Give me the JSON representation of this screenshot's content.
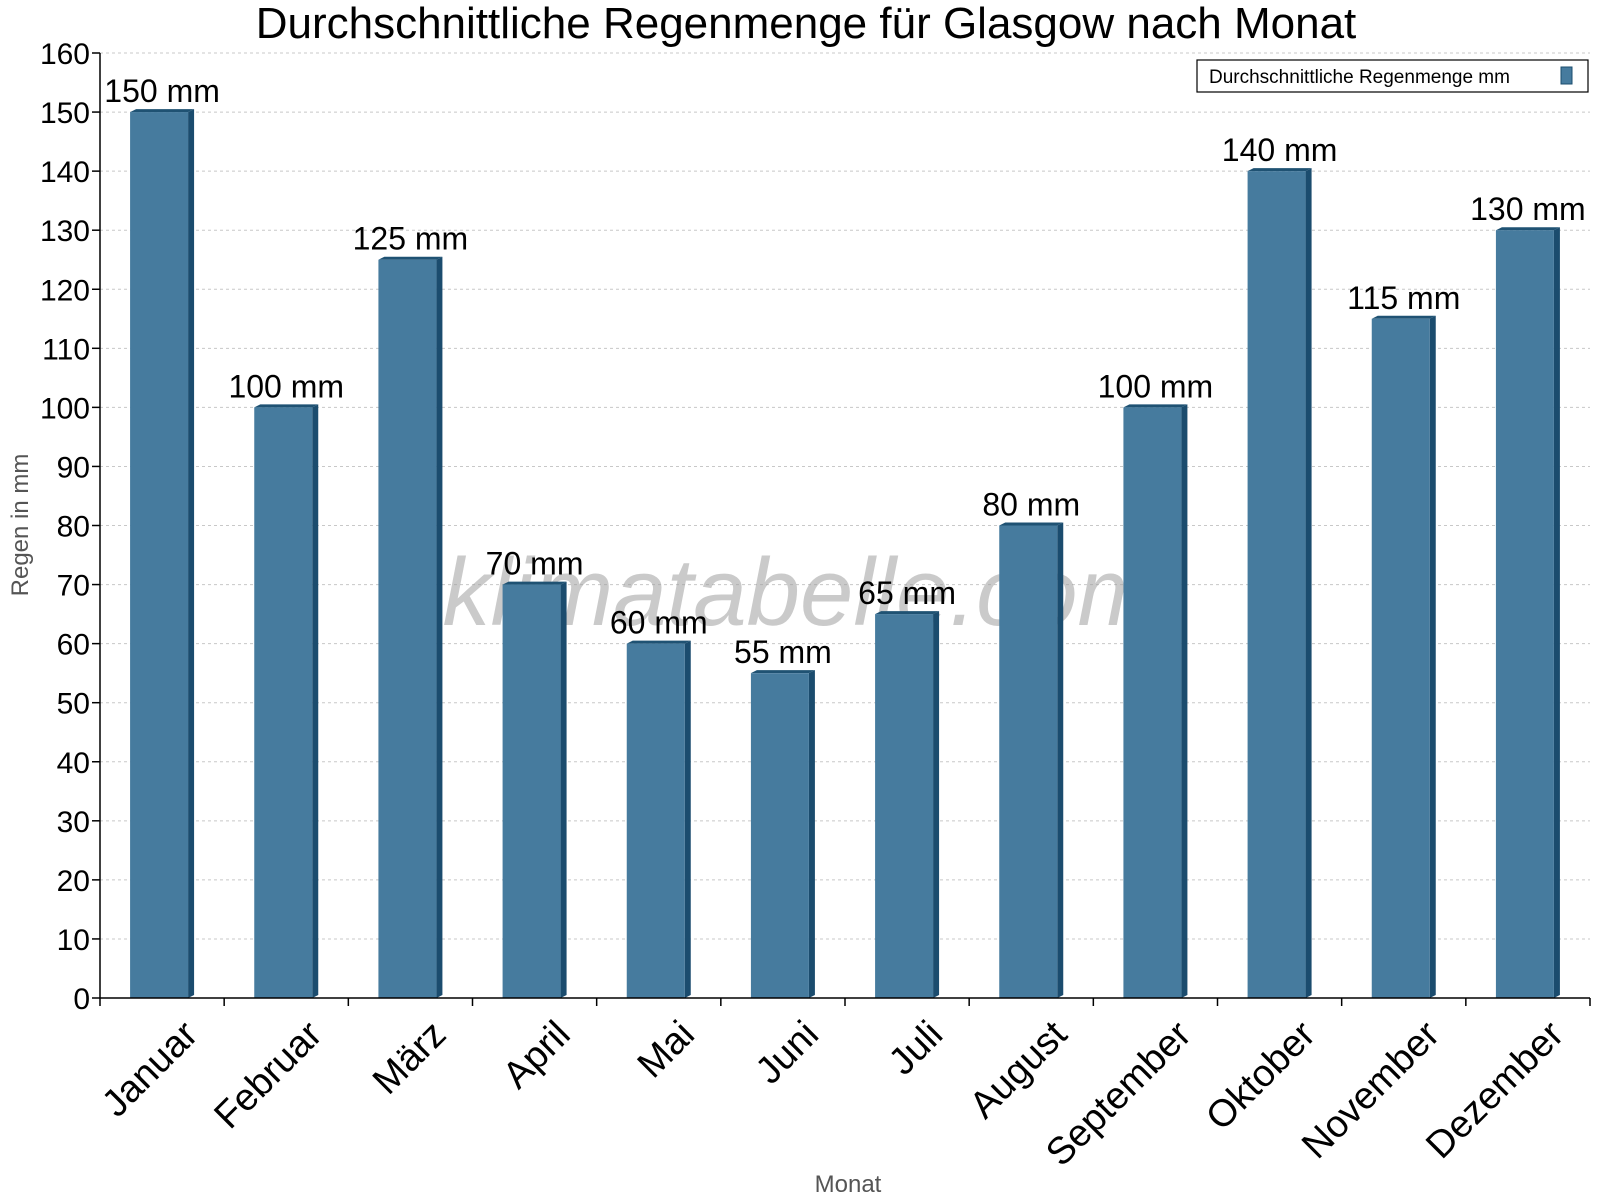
{
  "watermark": "klimatabelle.com",
  "chart_data": {
    "type": "bar",
    "title": "Durchschnittliche Regenmenge für Glasgow nach Monat",
    "xlabel": "Monat",
    "ylabel": "Regen in mm",
    "ylim": [
      0,
      160
    ],
    "yticks": [
      0,
      10,
      20,
      30,
      40,
      50,
      60,
      70,
      80,
      90,
      100,
      110,
      120,
      130,
      140,
      150,
      160
    ],
    "grid": true,
    "legend_position": "top-right",
    "categories": [
      "Januar",
      "Februar",
      "März",
      "April",
      "Mai",
      "Juni",
      "Juli",
      "August",
      "September",
      "Oktober",
      "November",
      "Dezember"
    ],
    "series": [
      {
        "name": "Durchschnittliche Regenmenge mm",
        "values": [
          150,
          100,
          125,
          70,
          60,
          55,
          65,
          80,
          100,
          140,
          115,
          130
        ],
        "data_labels": [
          "150 mm",
          "100 mm",
          "125 mm",
          "70 mm",
          "60 mm",
          "55 mm",
          "65 mm",
          "80 mm",
          "100 mm",
          "140 mm",
          "115 mm",
          "130 mm"
        ]
      }
    ],
    "colors": {
      "bar": "#467b9e",
      "bar_side": "#1b4c6e",
      "bar_top": "#1f5273",
      "grid": "#c8c8c8",
      "axis": "#000000"
    }
  }
}
